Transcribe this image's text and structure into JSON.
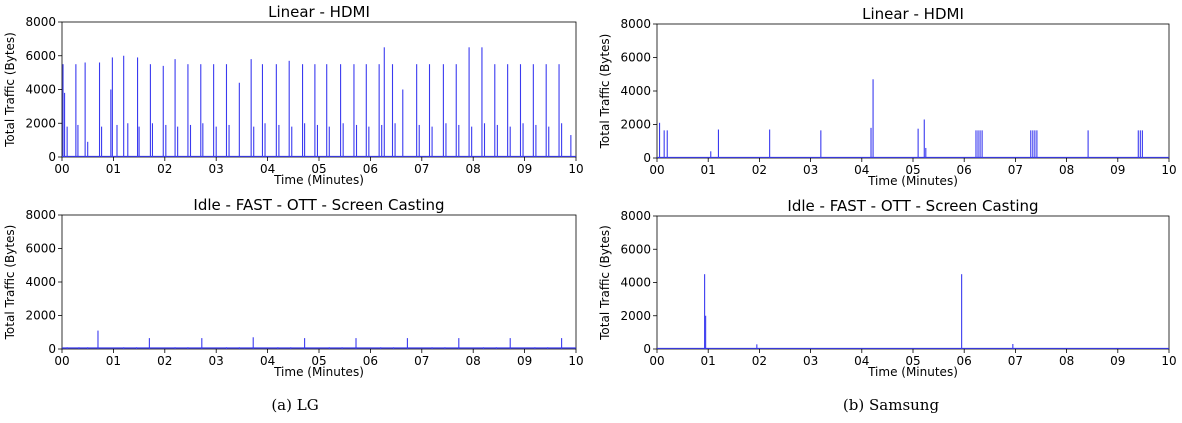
{
  "captions": {
    "lg": "(a)  LG",
    "samsung": "(b)  Samsung"
  },
  "colors": {
    "line": "#3a3af0",
    "axis": "#000000"
  },
  "chart_data": [
    {
      "id": "lg-linear",
      "type": "line",
      "title": "Linear - HDMI",
      "xlabel": "Time (Minutes)",
      "ylabel": "Total Traffic (Bytes)",
      "xlim": [
        0,
        10
      ],
      "ylim": [
        0,
        8000
      ],
      "xticks": [
        "00",
        "01",
        "02",
        "03",
        "04",
        "05",
        "06",
        "07",
        "08",
        "09",
        "10"
      ],
      "yticks": [
        0,
        2000,
        4000,
        6000,
        8000
      ],
      "grid": false,
      "legend": "none",
      "spikes": [
        {
          "x": 0.02,
          "y": 5500
        },
        {
          "x": 0.05,
          "y": 3800
        },
        {
          "x": 0.1,
          "y": 1800
        },
        {
          "x": 0.27,
          "y": 5500
        },
        {
          "x": 0.31,
          "y": 1900
        },
        {
          "x": 0.45,
          "y": 5600
        },
        {
          "x": 0.5,
          "y": 900
        },
        {
          "x": 0.73,
          "y": 5600
        },
        {
          "x": 0.77,
          "y": 1800
        },
        {
          "x": 0.95,
          "y": 4000
        },
        {
          "x": 0.98,
          "y": 5900
        },
        {
          "x": 1.07,
          "y": 1900
        },
        {
          "x": 1.2,
          "y": 6000
        },
        {
          "x": 1.28,
          "y": 2000
        },
        {
          "x": 1.47,
          "y": 5900
        },
        {
          "x": 1.5,
          "y": 1800
        },
        {
          "x": 1.72,
          "y": 5500
        },
        {
          "x": 1.76,
          "y": 2000
        },
        {
          "x": 1.97,
          "y": 5400
        },
        {
          "x": 2.02,
          "y": 1900
        },
        {
          "x": 2.2,
          "y": 5800
        },
        {
          "x": 2.25,
          "y": 1800
        },
        {
          "x": 2.45,
          "y": 5500
        },
        {
          "x": 2.5,
          "y": 1900
        },
        {
          "x": 2.7,
          "y": 5500
        },
        {
          "x": 2.74,
          "y": 2000
        },
        {
          "x": 2.95,
          "y": 5500
        },
        {
          "x": 3.0,
          "y": 1800
        },
        {
          "x": 3.2,
          "y": 5500
        },
        {
          "x": 3.25,
          "y": 1900
        },
        {
          "x": 3.45,
          "y": 4400
        },
        {
          "x": 3.68,
          "y": 5800
        },
        {
          "x": 3.73,
          "y": 1800
        },
        {
          "x": 3.9,
          "y": 5500
        },
        {
          "x": 3.95,
          "y": 2000
        },
        {
          "x": 4.17,
          "y": 5500
        },
        {
          "x": 4.22,
          "y": 1900
        },
        {
          "x": 4.42,
          "y": 5700
        },
        {
          "x": 4.47,
          "y": 1800
        },
        {
          "x": 4.68,
          "y": 5500
        },
        {
          "x": 4.72,
          "y": 2000
        },
        {
          "x": 4.92,
          "y": 5500
        },
        {
          "x": 4.97,
          "y": 1900
        },
        {
          "x": 5.15,
          "y": 5500
        },
        {
          "x": 5.2,
          "y": 1800
        },
        {
          "x": 5.42,
          "y": 5500
        },
        {
          "x": 5.47,
          "y": 2000
        },
        {
          "x": 5.68,
          "y": 5500
        },
        {
          "x": 5.73,
          "y": 1900
        },
        {
          "x": 5.92,
          "y": 5500
        },
        {
          "x": 5.97,
          "y": 1800
        },
        {
          "x": 6.17,
          "y": 5500
        },
        {
          "x": 6.22,
          "y": 1900
        },
        {
          "x": 6.27,
          "y": 6500
        },
        {
          "x": 6.43,
          "y": 5500
        },
        {
          "x": 6.48,
          "y": 2000
        },
        {
          "x": 6.63,
          "y": 4000
        },
        {
          "x": 6.9,
          "y": 5500
        },
        {
          "x": 6.95,
          "y": 1900
        },
        {
          "x": 7.15,
          "y": 5500
        },
        {
          "x": 7.2,
          "y": 1800
        },
        {
          "x": 7.42,
          "y": 5500
        },
        {
          "x": 7.47,
          "y": 2000
        },
        {
          "x": 7.67,
          "y": 5500
        },
        {
          "x": 7.72,
          "y": 1900
        },
        {
          "x": 7.92,
          "y": 6500
        },
        {
          "x": 7.97,
          "y": 1800
        },
        {
          "x": 8.17,
          "y": 6500
        },
        {
          "x": 8.22,
          "y": 2000
        },
        {
          "x": 8.42,
          "y": 5500
        },
        {
          "x": 8.47,
          "y": 1900
        },
        {
          "x": 8.67,
          "y": 5500
        },
        {
          "x": 8.72,
          "y": 1800
        },
        {
          "x": 8.92,
          "y": 5500
        },
        {
          "x": 8.97,
          "y": 2000
        },
        {
          "x": 9.17,
          "y": 5500
        },
        {
          "x": 9.22,
          "y": 1900
        },
        {
          "x": 9.42,
          "y": 5500
        },
        {
          "x": 9.47,
          "y": 1800
        },
        {
          "x": 9.67,
          "y": 5500
        },
        {
          "x": 9.72,
          "y": 2000
        },
        {
          "x": 9.9,
          "y": 1300
        }
      ]
    },
    {
      "id": "ss-linear",
      "type": "line",
      "title": "Linear - HDMI",
      "xlabel": "Time (Minutes)",
      "ylabel": "Total Traffic (Bytes)",
      "xlim": [
        0,
        10
      ],
      "ylim": [
        0,
        8000
      ],
      "xticks": [
        "00",
        "01",
        "02",
        "03",
        "04",
        "05",
        "06",
        "07",
        "08",
        "09",
        "10"
      ],
      "yticks": [
        0,
        2000,
        4000,
        6000,
        8000
      ],
      "grid": false,
      "legend": "none",
      "spikes": [
        {
          "x": 0.05,
          "y": 2100
        },
        {
          "x": 0.14,
          "y": 1650
        },
        {
          "x": 0.2,
          "y": 1650
        },
        {
          "x": 1.05,
          "y": 400
        },
        {
          "x": 1.2,
          "y": 1700
        },
        {
          "x": 2.2,
          "y": 1700
        },
        {
          "x": 3.2,
          "y": 1650
        },
        {
          "x": 4.18,
          "y": 1800
        },
        {
          "x": 4.22,
          "y": 4700
        },
        {
          "x": 5.1,
          "y": 1750
        },
        {
          "x": 5.22,
          "y": 2300
        },
        {
          "x": 5.25,
          "y": 600
        },
        {
          "x": 6.23,
          "y": 1650
        },
        {
          "x": 6.27,
          "y": 1650
        },
        {
          "x": 6.31,
          "y": 1650
        },
        {
          "x": 6.35,
          "y": 1650
        },
        {
          "x": 7.3,
          "y": 1650
        },
        {
          "x": 7.34,
          "y": 1650
        },
        {
          "x": 7.38,
          "y": 1650
        },
        {
          "x": 7.42,
          "y": 1650
        },
        {
          "x": 8.42,
          "y": 1650
        },
        {
          "x": 9.4,
          "y": 1650
        },
        {
          "x": 9.44,
          "y": 1650
        },
        {
          "x": 9.48,
          "y": 1650
        }
      ]
    },
    {
      "id": "lg-idle",
      "type": "line",
      "title": "Idle - FAST - OTT - Screen Casting",
      "xlabel": "Time (Minutes)",
      "ylabel": "Total Traffic (Bytes)",
      "xlim": [
        0,
        10
      ],
      "ylim": [
        0,
        8000
      ],
      "xticks": [
        "00",
        "01",
        "02",
        "03",
        "04",
        "05",
        "06",
        "07",
        "08",
        "09",
        "10"
      ],
      "yticks": [
        0,
        2000,
        4000,
        6000,
        8000
      ],
      "grid": false,
      "legend": "none",
      "baseline": 60,
      "spikes": [
        {
          "x": 0.1,
          "y": 100
        },
        {
          "x": 0.33,
          "y": 100
        },
        {
          "x": 0.5,
          "y": 100
        },
        {
          "x": 0.7,
          "y": 1100
        },
        {
          "x": 1.2,
          "y": 100
        },
        {
          "x": 1.45,
          "y": 100
        },
        {
          "x": 1.7,
          "y": 650
        },
        {
          "x": 2.2,
          "y": 100
        },
        {
          "x": 2.45,
          "y": 100
        },
        {
          "x": 2.72,
          "y": 650
        },
        {
          "x": 3.2,
          "y": 100
        },
        {
          "x": 3.45,
          "y": 100
        },
        {
          "x": 3.72,
          "y": 700
        },
        {
          "x": 4.2,
          "y": 100
        },
        {
          "x": 4.45,
          "y": 100
        },
        {
          "x": 4.72,
          "y": 650
        },
        {
          "x": 5.2,
          "y": 100
        },
        {
          "x": 5.45,
          "y": 100
        },
        {
          "x": 5.72,
          "y": 650
        },
        {
          "x": 6.2,
          "y": 100
        },
        {
          "x": 6.45,
          "y": 100
        },
        {
          "x": 6.72,
          "y": 650
        },
        {
          "x": 7.2,
          "y": 100
        },
        {
          "x": 7.45,
          "y": 100
        },
        {
          "x": 7.72,
          "y": 650
        },
        {
          "x": 8.2,
          "y": 100
        },
        {
          "x": 8.45,
          "y": 100
        },
        {
          "x": 8.72,
          "y": 650
        },
        {
          "x": 9.2,
          "y": 100
        },
        {
          "x": 9.45,
          "y": 100
        },
        {
          "x": 9.72,
          "y": 650
        }
      ]
    },
    {
      "id": "ss-idle",
      "type": "line",
      "title": "Idle - FAST - OTT - Screen Casting",
      "xlabel": "Time (Minutes)",
      "ylabel": "Total Traffic (Bytes)",
      "xlim": [
        0,
        10
      ],
      "ylim": [
        0,
        8000
      ],
      "xticks": [
        "00",
        "01",
        "02",
        "03",
        "04",
        "05",
        "06",
        "07",
        "08",
        "09",
        "10"
      ],
      "yticks": [
        0,
        2000,
        4000,
        6000,
        8000
      ],
      "grid": false,
      "legend": "none",
      "spikes": [
        {
          "x": 0.93,
          "y": 4500
        },
        {
          "x": 0.95,
          "y": 2000
        },
        {
          "x": 1.95,
          "y": 280
        },
        {
          "x": 5.95,
          "y": 4500
        },
        {
          "x": 6.95,
          "y": 300
        }
      ]
    }
  ]
}
